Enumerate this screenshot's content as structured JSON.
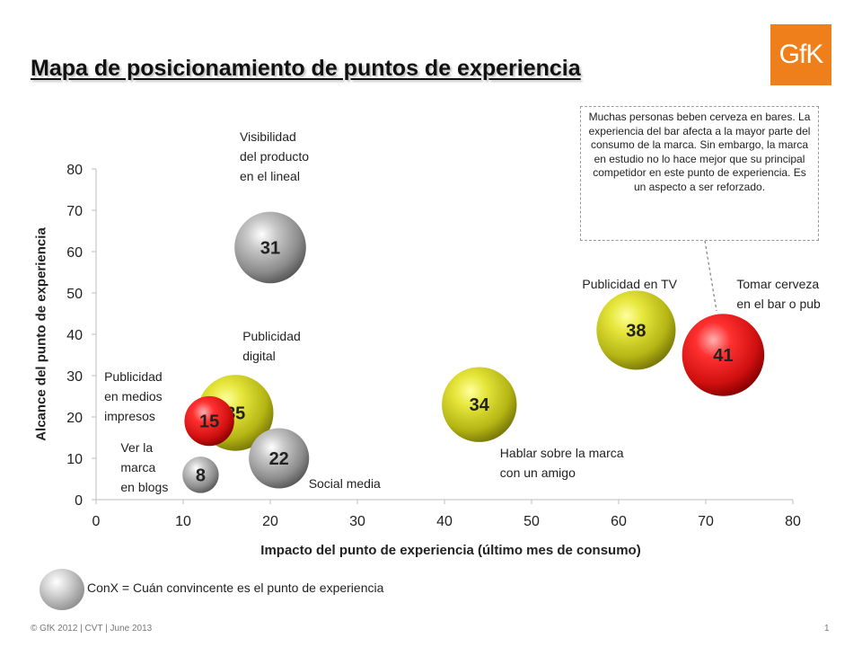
{
  "slide": {
    "title": "Mapa de posicionamiento de puntos de experiencia",
    "logo_text": "GfK",
    "brand_color": "#ef7f1a",
    "callout": "Muchas personas beben cerveza en bares. La experiencia del bar afecta a la mayor parte del consumo de la marca. Sin embargo, la marca en estudio no lo hace mejor que su principal competidor en este punto de experiencia. Es un aspecto a ser reforzado.",
    "legend_text": "ConX  = Cuán convincente  es el punto  de experiencia",
    "footer": "© GfK 2012 | CVT | June 2013",
    "page_number": "1"
  },
  "chart_data": {
    "type": "scatter",
    "subtype": "bubble",
    "xlabel": "Impacto del punto de experiencia (último mes de consumo)",
    "ylabel": "Alcance del punto de experiencia",
    "xlim": [
      0,
      80
    ],
    "ylim": [
      0,
      80
    ],
    "xticks": [
      "0",
      "10",
      "20",
      "30",
      "40",
      "50",
      "60",
      "70",
      "80"
    ],
    "yticks": [
      "0",
      "10",
      "20",
      "30",
      "40",
      "50",
      "60",
      "70",
      "80"
    ],
    "grid": false,
    "colors": {
      "gray": "#8c8c8c",
      "olive": "#c8c81e",
      "red": "#e01818"
    },
    "points": [
      {
        "label": "Visibilidad del producto en el lineal",
        "lines": [
          "Visibilidad",
          "del producto",
          "en el lineal"
        ],
        "x": 20,
        "y": 61,
        "conx": 31,
        "color": "gray"
      },
      {
        "label": "Publicidad en TV",
        "lines": [
          "Publicidad  en TV"
        ],
        "x": 62,
        "y": 41,
        "conx": 38,
        "color": "olive"
      },
      {
        "label": "Tomar cerveza en el bar o pub",
        "lines": [
          "Tomar  cerveza",
          "en el bar o pub"
        ],
        "x": 72,
        "y": 35,
        "conx": 41,
        "color": "red"
      },
      {
        "label": "Hablar sobre la marca con un amigo",
        "lines": [
          "Hablar  sobre  la marca",
          "con un amigo"
        ],
        "x": 44,
        "y": 23,
        "conx": 34,
        "color": "olive"
      },
      {
        "label": "Publicidad digital",
        "lines": [
          "Publicidad",
          "digital"
        ],
        "x": 16,
        "y": 21,
        "conx": 35,
        "color": "olive"
      },
      {
        "label": "Publicidad en medios impresos",
        "lines": [
          "Publicidad",
          "en medios",
          "impresos"
        ],
        "x": 13,
        "y": 19,
        "conx": 15,
        "color": "red"
      },
      {
        "label": "Social media",
        "lines": [
          "Social media"
        ],
        "x": 21,
        "y": 10,
        "conx": 22,
        "color": "gray"
      },
      {
        "label": "Ver la marca en blogs",
        "lines": [
          "Ver la",
          "marca",
          "en blogs"
        ],
        "x": 12,
        "y": 6,
        "conx": 8,
        "color": "gray"
      }
    ]
  }
}
